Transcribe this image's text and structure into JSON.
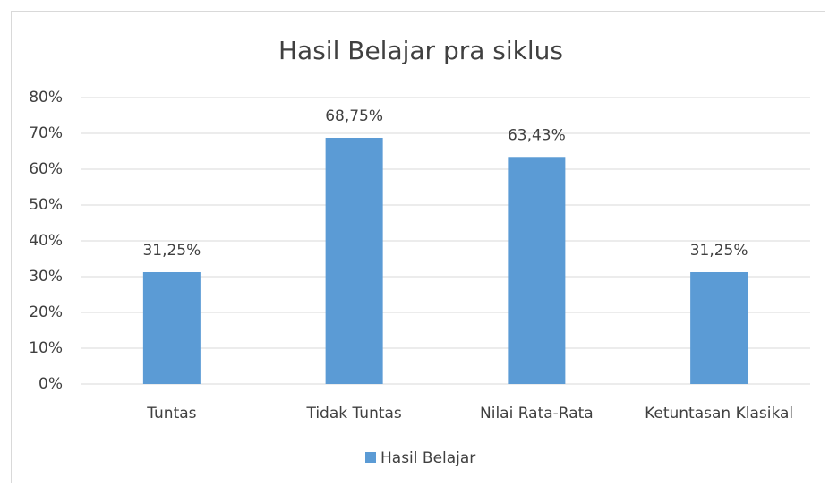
{
  "chart_data": {
    "type": "bar",
    "title": "Hasil Belajar pra siklus",
    "categories": [
      "Tuntas",
      "Tidak Tuntas",
      "Nilai Rata-Rata",
      "Ketuntasan Klasikal"
    ],
    "series": [
      {
        "name": "Hasil Belajar",
        "color": "#5b9bd5",
        "values": [
          31.25,
          68.75,
          63.43,
          31.25
        ],
        "value_labels": [
          "31,25%",
          "68,75%",
          "63,43%",
          "31,25%"
        ]
      }
    ],
    "ylim": [
      0,
      80
    ],
    "yticks": [
      {
        "value": 0,
        "label": "0%"
      },
      {
        "value": 10,
        "label": "10%"
      },
      {
        "value": 20,
        "label": "20%"
      },
      {
        "value": 30,
        "label": "30%"
      },
      {
        "value": 40,
        "label": "40%"
      },
      {
        "value": 50,
        "label": "50%"
      },
      {
        "value": 60,
        "label": "60%"
      },
      {
        "value": 70,
        "label": "70%"
      },
      {
        "value": 80,
        "label": "80%"
      }
    ],
    "grid": true,
    "legend": "bottom"
  }
}
